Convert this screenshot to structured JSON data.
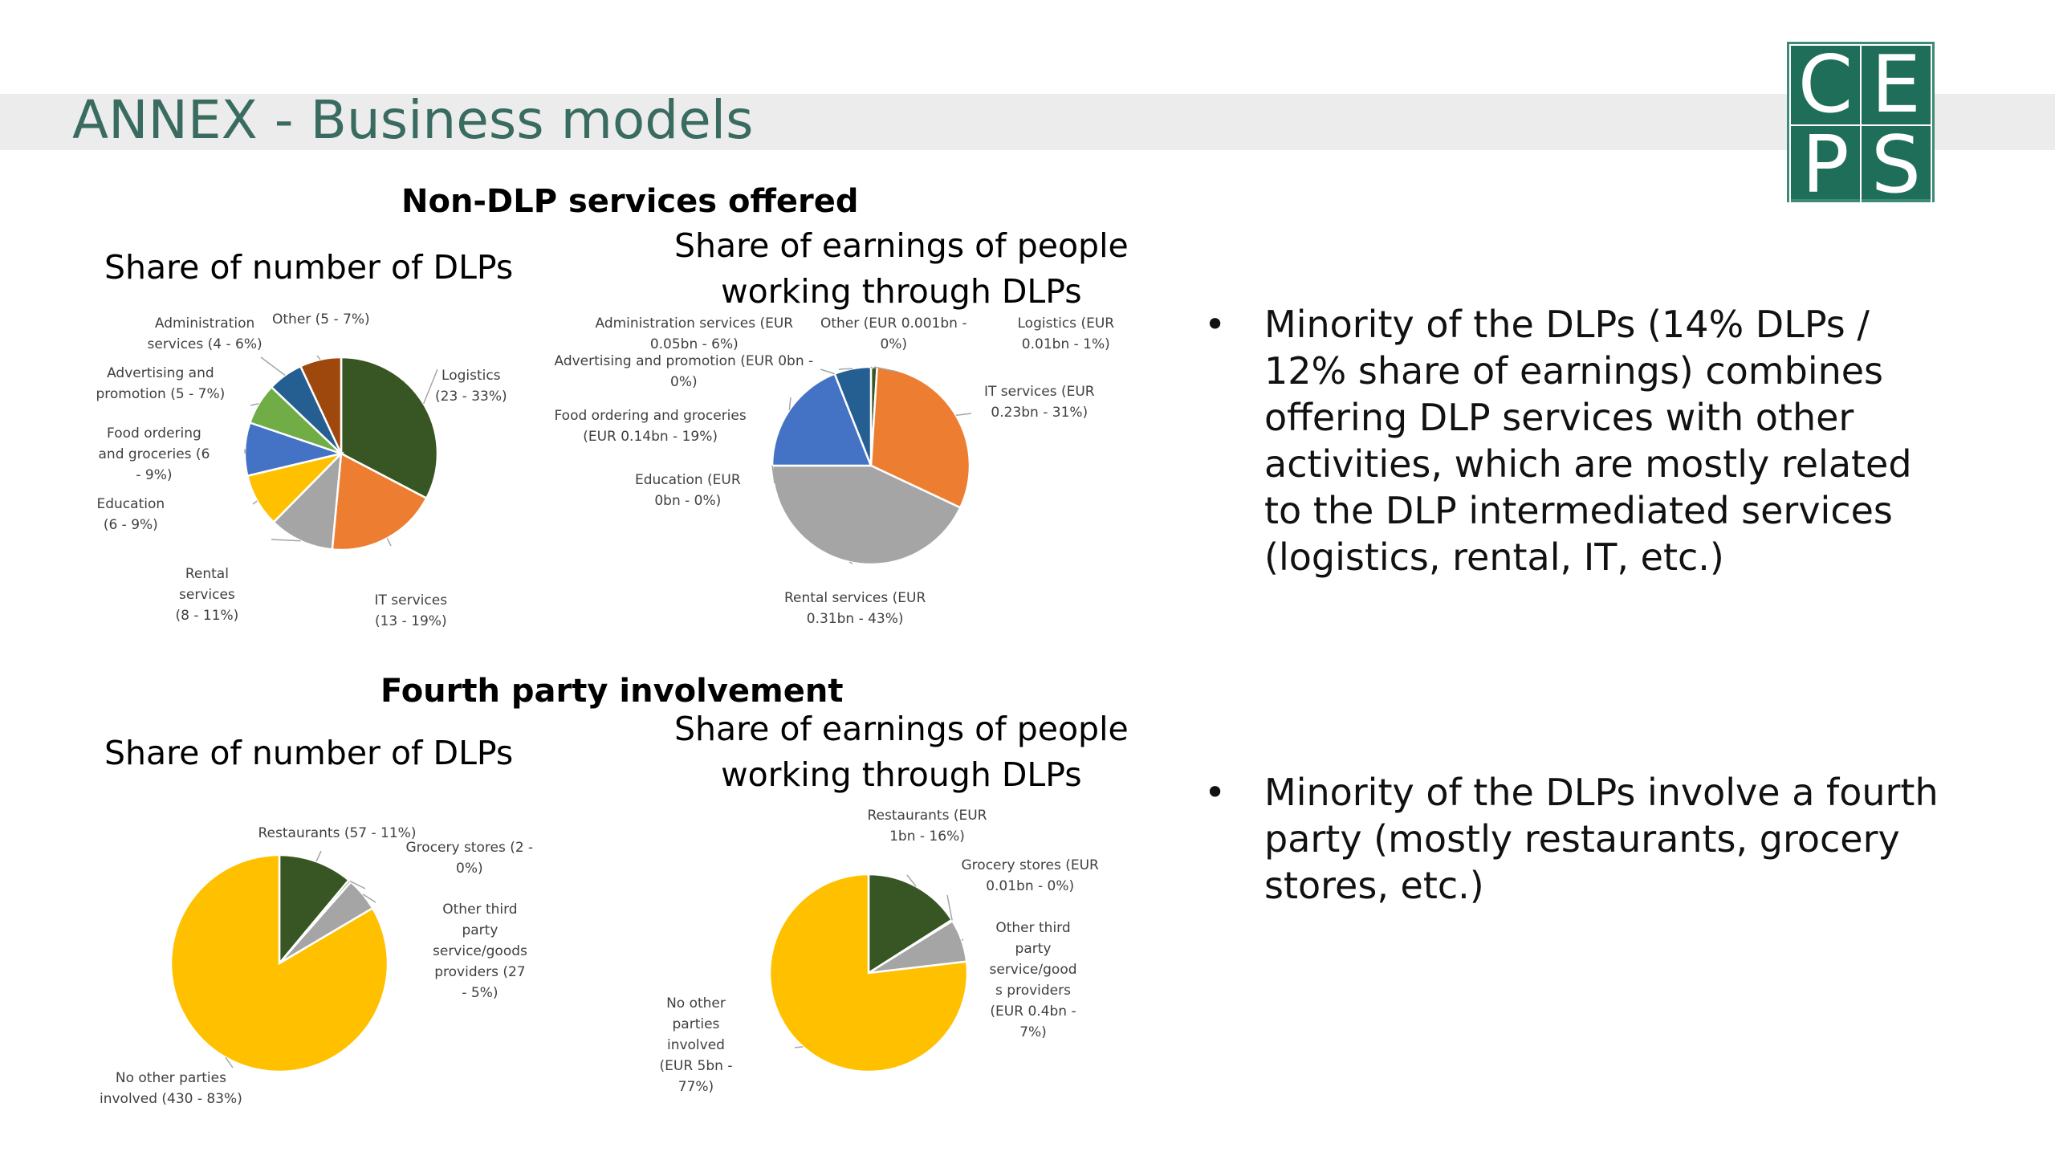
{
  "slide": {
    "title": "ANNEX - Business models",
    "logo": [
      "C",
      "E",
      "P",
      "S"
    ]
  },
  "sections": [
    {
      "heading": "Non-DLP services offered"
    },
    {
      "heading": "Fourth party involvement"
    }
  ],
  "bullets": [
    {
      "lines": [
        "Minority of the DLPs (14% DLPs /",
        "12% share of earnings) combines",
        "offering DLP services with other",
        "activities, which are mostly related",
        "to the DLP intermediated services",
        "(logistics, rental, IT, etc.)"
      ]
    },
    {
      "lines": [
        "Minority of the DLPs involve a fourth",
        "party (mostly restaurants, grocery",
        "stores, etc.)"
      ]
    }
  ],
  "colors": {
    "dark_green": "#375623",
    "orange": "#ed7d31",
    "gray": "#a5a5a5",
    "yellow": "#ffc000",
    "blue": "#4472c4",
    "light_green": "#70ad47",
    "navy": "#255e91",
    "brown": "#9e480e",
    "title_green": "#3a6b60",
    "logo_green": "#1f6e5a"
  },
  "chart_data": [
    {
      "type": "pie",
      "title": [
        "Share of number of DLPs"
      ],
      "slices": [
        {
          "label": [
            "Logistics",
            "(23 - 33%)"
          ],
          "value": 33,
          "color": "#375623"
        },
        {
          "label": [
            "IT services",
            "(13 - 19%)"
          ],
          "value": 19,
          "color": "#ed7d31"
        },
        {
          "label": [
            "Rental",
            "services",
            "(8 - 11%)"
          ],
          "value": 11,
          "color": "#a5a5a5"
        },
        {
          "label": [
            "Education",
            "(6 - 9%)"
          ],
          "value": 9,
          "color": "#ffc000"
        },
        {
          "label": [
            "Food ordering",
            "and groceries (6",
            "- 9%)"
          ],
          "value": 9,
          "color": "#4472c4"
        },
        {
          "label": [
            "Advertising and",
            "promotion (5 - 7%)"
          ],
          "value": 7,
          "color": "#70ad47"
        },
        {
          "label": [
            "Administration",
            "services (4 - 6%)"
          ],
          "value": 6,
          "color": "#255e91"
        },
        {
          "label": [
            "Other (5 - 7%)"
          ],
          "value": 7,
          "color": "#9e480e"
        }
      ]
    },
    {
      "type": "pie",
      "title": [
        "Share of earnings of people",
        "working through DLPs"
      ],
      "slices": [
        {
          "label": [
            "Logistics (EUR",
            "0.01bn - 1%)"
          ],
          "value": 1,
          "color": "#375623"
        },
        {
          "label": [
            "IT services (EUR",
            "0.23bn - 31%)"
          ],
          "value": 31,
          "color": "#ed7d31"
        },
        {
          "label": [
            "Rental services (EUR",
            "0.31bn - 43%)"
          ],
          "value": 43,
          "color": "#a5a5a5"
        },
        {
          "label": [
            "Education (EUR",
            "0bn - 0%)"
          ],
          "value": 0,
          "color": "#ffc000"
        },
        {
          "label": [
            "Food ordering and groceries",
            "(EUR 0.14bn - 19%)"
          ],
          "value": 19,
          "color": "#4472c4"
        },
        {
          "label": [
            "Advertising and promotion (EUR 0bn -",
            "0%)"
          ],
          "value": 0,
          "color": "#70ad47"
        },
        {
          "label": [
            "Administration services (EUR",
            "0.05bn - 6%)"
          ],
          "value": 6,
          "color": "#255e91"
        },
        {
          "label": [
            "Other (EUR 0.001bn -",
            "0%)"
          ],
          "value": 0,
          "color": "#9e480e"
        }
      ]
    },
    {
      "type": "pie",
      "title": [
        "Share of number of DLPs"
      ],
      "slices": [
        {
          "label": [
            "Restaurants (57 - 11%)"
          ],
          "value": 11,
          "color": "#375623"
        },
        {
          "label": [
            "Grocery stores (2 -",
            "0%)"
          ],
          "value": 0.4,
          "color": "#70ad47"
        },
        {
          "label": [
            "Other third",
            "party",
            "service/goods",
            "providers (27",
            "- 5%)"
          ],
          "value": 5,
          "color": "#a5a5a5"
        },
        {
          "label": [
            "No other parties",
            "involved (430 - 83%)"
          ],
          "value": 83,
          "color": "#ffc000"
        }
      ]
    },
    {
      "type": "pie",
      "title": [
        "Share of earnings of people",
        "working through DLPs"
      ],
      "slices": [
        {
          "label": [
            "Restaurants (EUR",
            "1bn - 16%)"
          ],
          "value": 16,
          "color": "#375623"
        },
        {
          "label": [
            "Grocery stores (EUR",
            "0.01bn - 0%)"
          ],
          "value": 0.2,
          "color": "#70ad47"
        },
        {
          "label": [
            "Other third",
            "party",
            "service/good",
            "s providers",
            "(EUR 0.4bn -",
            "7%)"
          ],
          "value": 7,
          "color": "#a5a5a5"
        },
        {
          "label": [
            "No other",
            "parties",
            "involved",
            "(EUR 5bn -",
            "77%)"
          ],
          "value": 77,
          "color": "#ffc000"
        }
      ]
    }
  ]
}
